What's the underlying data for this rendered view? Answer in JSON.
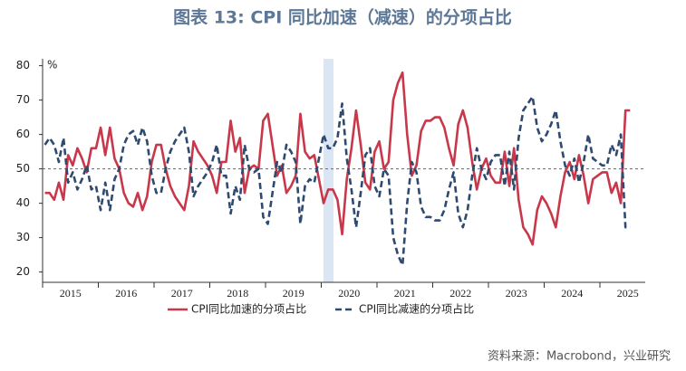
{
  "chart_data": {
    "type": "line",
    "title": "图表 13: CPI 同比加速（减速）的分项占比",
    "y_unit": "%",
    "source": "资料来源：Macrobond，兴业研究",
    "categories": [
      null,
      null,
      null,
      null,
      null,
      null,
      "2015",
      null,
      null,
      null,
      null,
      null,
      null,
      null,
      null,
      null,
      null,
      null,
      "2016",
      null,
      null,
      null,
      null,
      null,
      null,
      null,
      null,
      null,
      null,
      null,
      "2017",
      null,
      null,
      null,
      null,
      null,
      null,
      null,
      null,
      null,
      null,
      null,
      "2018",
      null,
      null,
      null,
      null,
      null,
      null,
      null,
      null,
      null,
      null,
      null,
      "2019",
      null,
      null,
      null,
      null,
      null,
      null,
      null,
      null,
      null,
      null,
      null,
      "2020",
      null,
      null,
      null,
      null,
      null,
      null,
      null,
      null,
      null,
      null,
      null,
      "2021",
      null,
      null,
      null,
      null,
      null,
      null,
      null,
      null,
      null,
      null,
      null,
      "2022",
      null,
      null,
      null,
      null,
      null,
      null,
      null,
      null,
      null,
      null,
      null,
      "2023",
      null,
      null,
      null,
      null,
      null,
      null,
      null,
      null,
      null,
      null,
      null,
      "2024",
      null,
      null,
      null,
      null,
      null,
      null,
      null,
      null,
      null,
      null,
      null,
      "2025"
    ],
    "series": [
      {
        "name": "CPI同比加速的分项占比",
        "color": "#c8374a",
        "dash": false,
        "values": [
          43,
          43,
          41,
          46,
          41,
          54,
          51,
          56,
          53,
          49,
          56,
          56,
          62,
          54,
          62,
          53,
          50,
          43,
          40,
          39,
          43,
          38,
          42,
          52,
          57,
          57,
          50,
          45,
          42,
          40,
          38,
          45,
          58,
          55,
          53,
          51,
          48,
          43,
          52,
          52,
          64,
          55,
          59,
          43,
          50,
          51,
          50,
          64,
          66,
          57,
          48,
          51,
          43,
          45,
          48,
          66,
          55,
          53,
          54,
          47,
          40,
          44,
          44,
          41,
          31,
          47,
          56,
          67,
          57,
          46,
          44,
          55,
          58,
          50,
          52,
          70,
          75,
          78,
          60,
          48,
          51,
          61,
          64,
          64,
          65,
          65,
          62,
          56,
          51,
          63,
          67,
          62,
          52,
          44,
          50,
          53,
          48,
          46,
          46,
          55,
          45,
          56,
          41,
          33,
          31,
          28,
          38,
          42,
          40,
          37,
          33,
          42,
          49,
          52,
          47,
          54,
          48,
          40,
          47,
          48,
          49,
          49,
          43,
          46,
          40,
          67,
          67
        ]
      },
      {
        "name": "CPI同比减速的分项占比",
        "color": "#2e4a70",
        "dash": true,
        "values": [
          57,
          59,
          57,
          52,
          59,
          46,
          49,
          44,
          47,
          51,
          44,
          45,
          38,
          46,
          38,
          47,
          50,
          57,
          60,
          61,
          57,
          62,
          58,
          48,
          43,
          43,
          50,
          55,
          58,
          60,
          62,
          55,
          42,
          45,
          47,
          49,
          52,
          57,
          48,
          48,
          37,
          45,
          41,
          57,
          50,
          49,
          50,
          36,
          34,
          43,
          52,
          49,
          57,
          55,
          52,
          34,
          45,
          47,
          46,
          53,
          60,
          56,
          56,
          59,
          69,
          53,
          44,
          33,
          43,
          54,
          56,
          45,
          42,
          50,
          48,
          30,
          25,
          22,
          40,
          52,
          49,
          39,
          36,
          36,
          35,
          35,
          38,
          44,
          49,
          37,
          33,
          38,
          48,
          56,
          50,
          47,
          52,
          54,
          54,
          45,
          55,
          44,
          59,
          67,
          69,
          71,
          62,
          58,
          60,
          63,
          67,
          58,
          51,
          48,
          53,
          46,
          52,
          60,
          53,
          52,
          51,
          51,
          57,
          54,
          60,
          33,
          33
        ]
      }
    ],
    "ylim": [
      17,
      82
    ],
    "yticks": [
      20,
      30,
      40,
      50,
      60,
      70,
      80
    ],
    "hline": 50
  }
}
